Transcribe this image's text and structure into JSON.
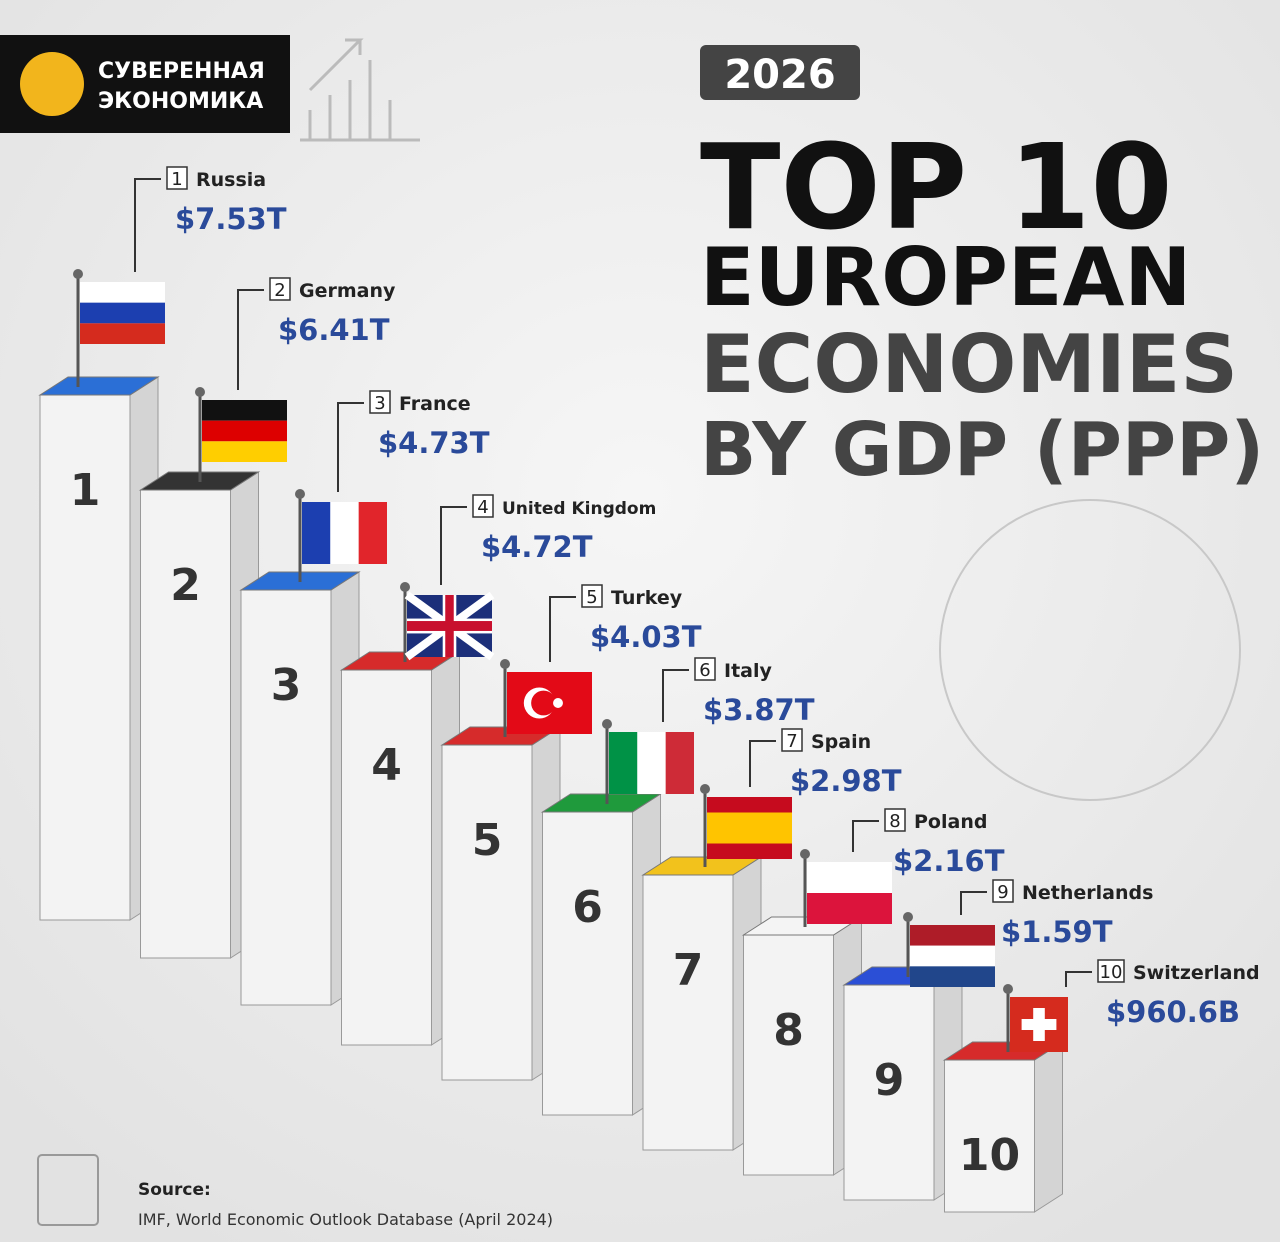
{
  "brand": {
    "name": "СУВЕРЕННАЯ ЭКОНОМИКА"
  },
  "header": {
    "year": "2026",
    "title_lines": [
      "TOP 10",
      "EUROPEAN",
      "ECONOMIES",
      "BY GDP (PPP)"
    ]
  },
  "rankings": [
    {
      "rank": "1",
      "country": "Russia",
      "gdp": "$7.53T"
    },
    {
      "rank": "2",
      "country": "Germany",
      "gdp": "$6.41T"
    },
    {
      "rank": "3",
      "country": "France",
      "gdp": "$4.73T"
    },
    {
      "rank": "4",
      "country": "United Kingdom",
      "gdp": "$4.72T"
    },
    {
      "rank": "5",
      "country": "Turkey",
      "gdp": "$4.03T"
    },
    {
      "rank": "6",
      "country": "Italy",
      "gdp": "$3.87T"
    },
    {
      "rank": "7",
      "country": "Spain",
      "gdp": "$2.98T"
    },
    {
      "rank": "8",
      "country": "Poland",
      "gdp": "$2.16T"
    },
    {
      "rank": "9",
      "country": "Netherlands",
      "gdp": "$1.59T"
    },
    {
      "rank": "10",
      "country": "Switzerland",
      "gdp": "$960.6B"
    }
  ],
  "source": {
    "label": "Source:",
    "text": "IMF, World Economic Outlook Database (April 2024)"
  }
}
